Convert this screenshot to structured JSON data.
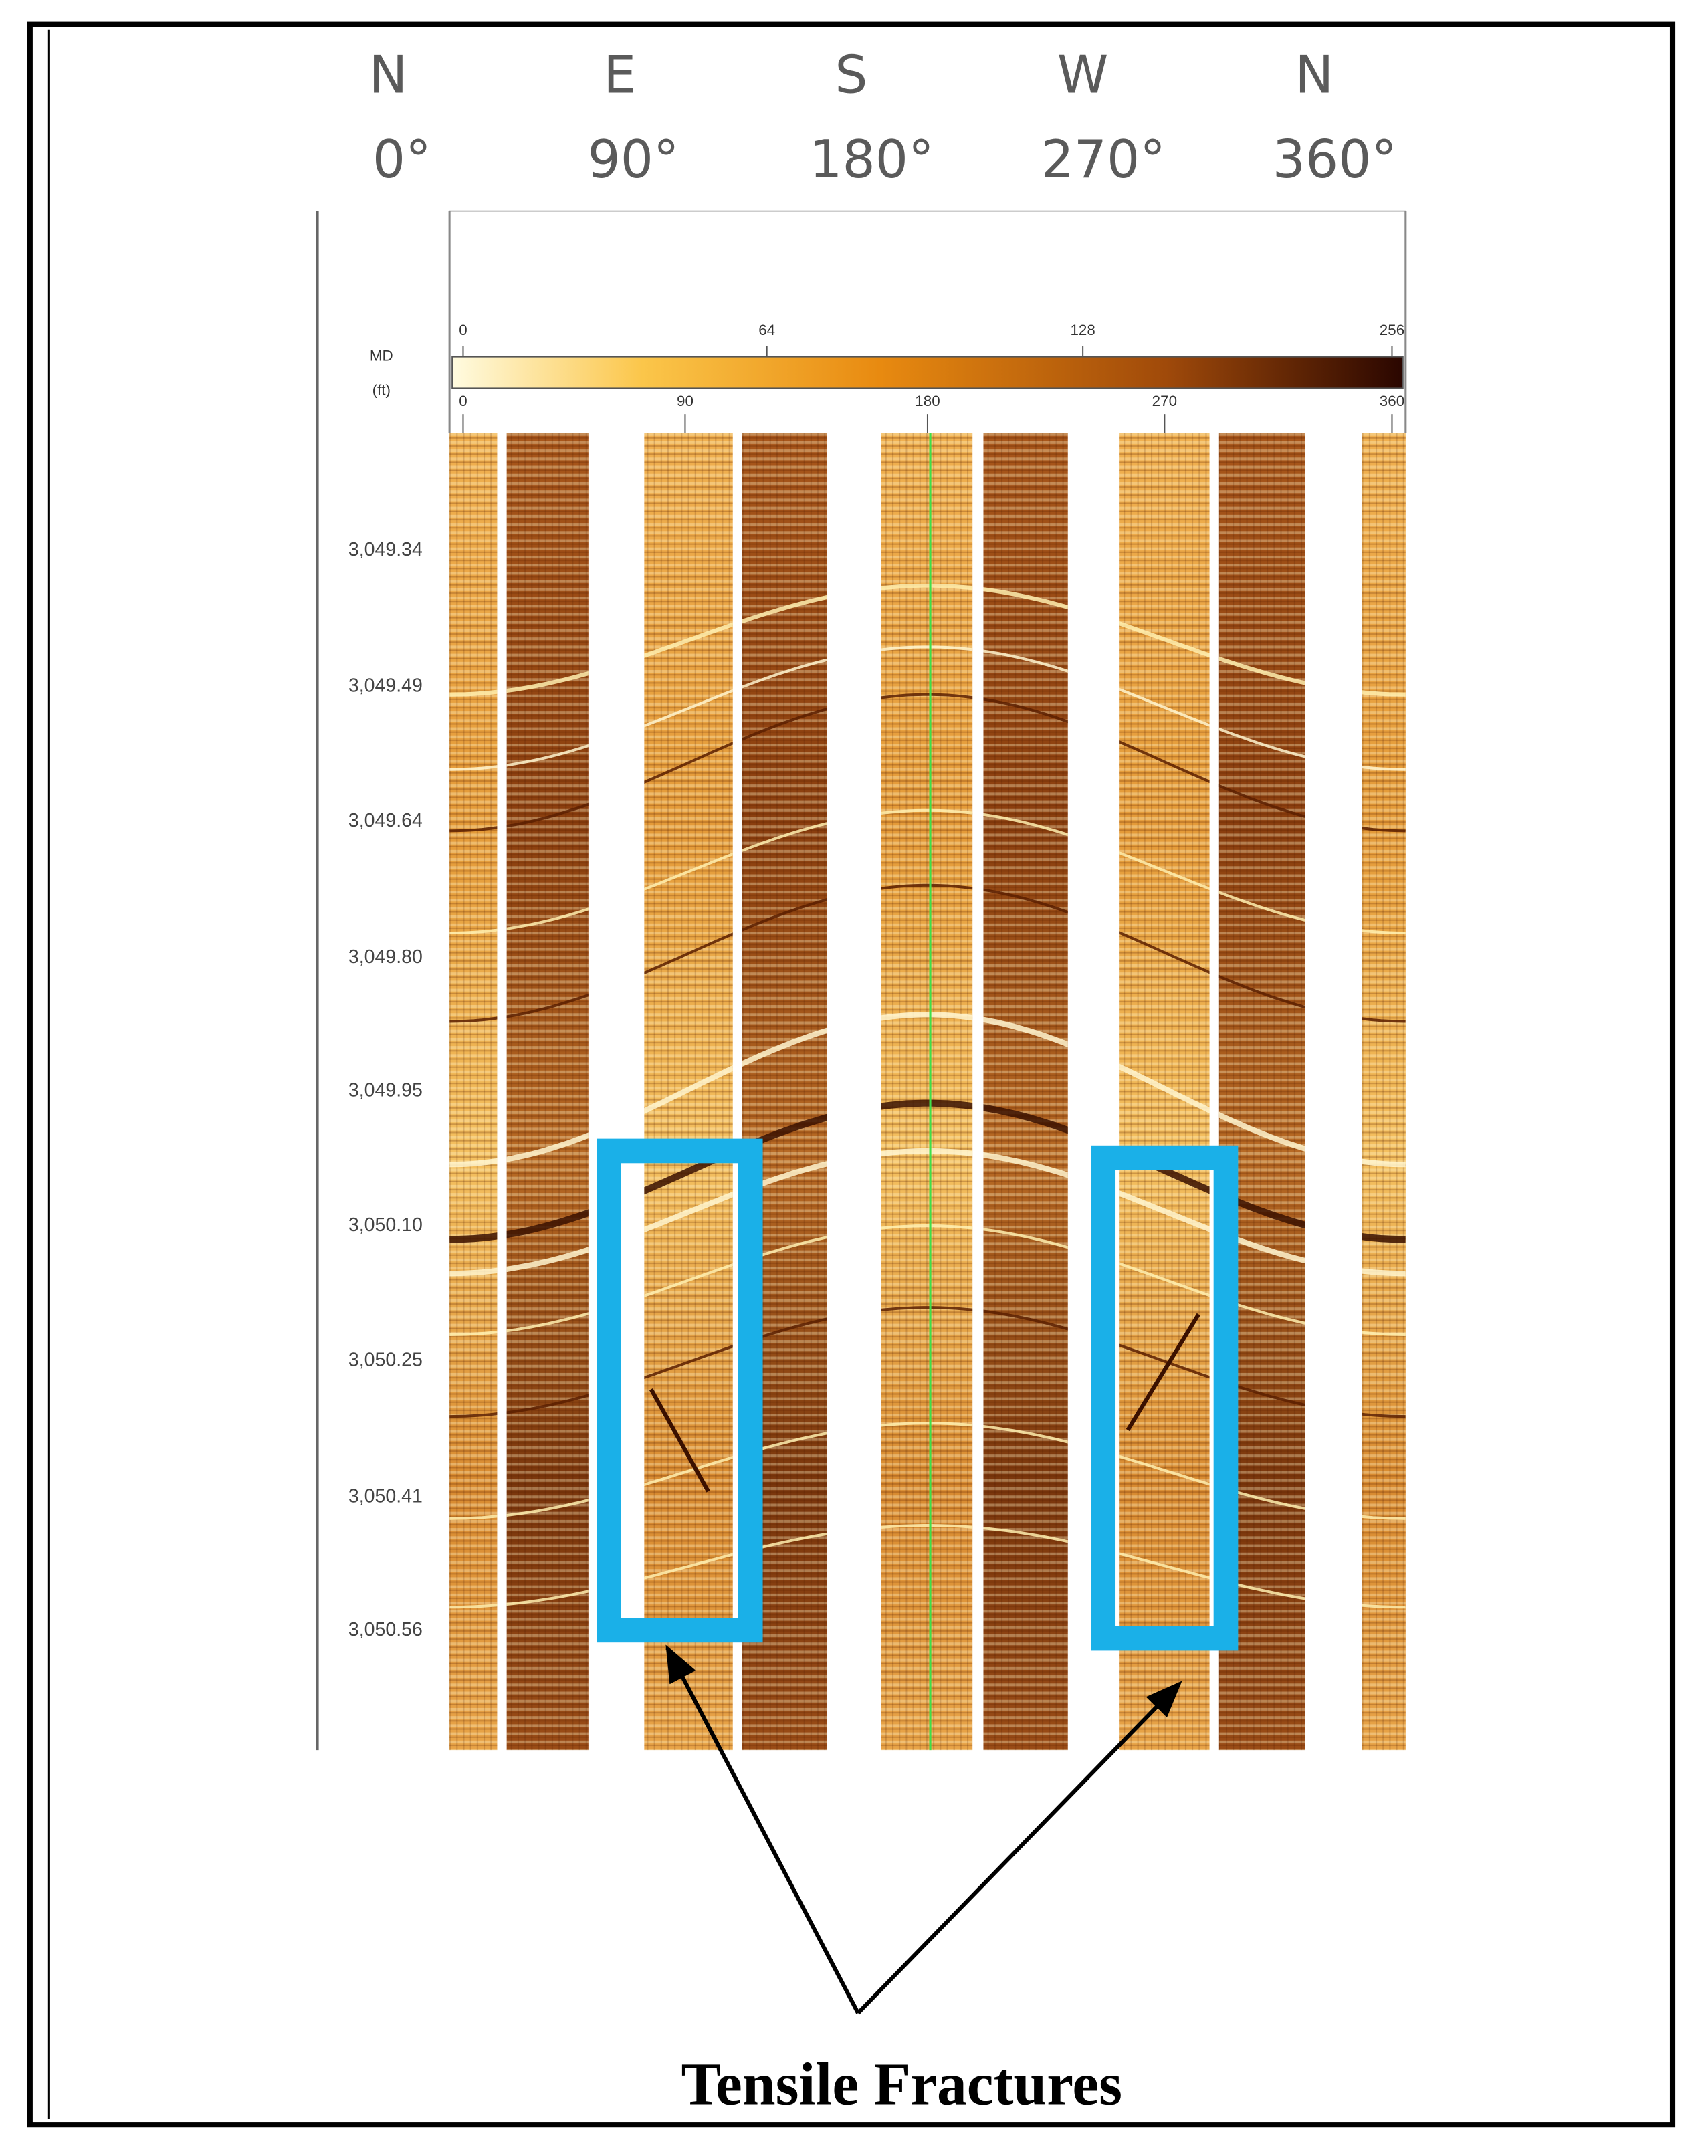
{
  "header": {
    "directions": [
      "N",
      "E",
      "S",
      "W",
      "N"
    ],
    "degrees": [
      "0°",
      "90°",
      "180°",
      "270°",
      "360°"
    ]
  },
  "scale": {
    "depth_label": "MD",
    "depth_unit": "(ft)",
    "amplitude_ticks": [
      0,
      64,
      128,
      256
    ],
    "azimuth_ticks": [
      0,
      90,
      180,
      270,
      360
    ]
  },
  "depths": [
    "3,049.34",
    "3,049.49",
    "3,049.64",
    "3,049.80",
    "3,049.95",
    "3,050.10",
    "3,050.25",
    "3,050.41",
    "3,050.56"
  ],
  "caption": "Tensile Fractures"
}
